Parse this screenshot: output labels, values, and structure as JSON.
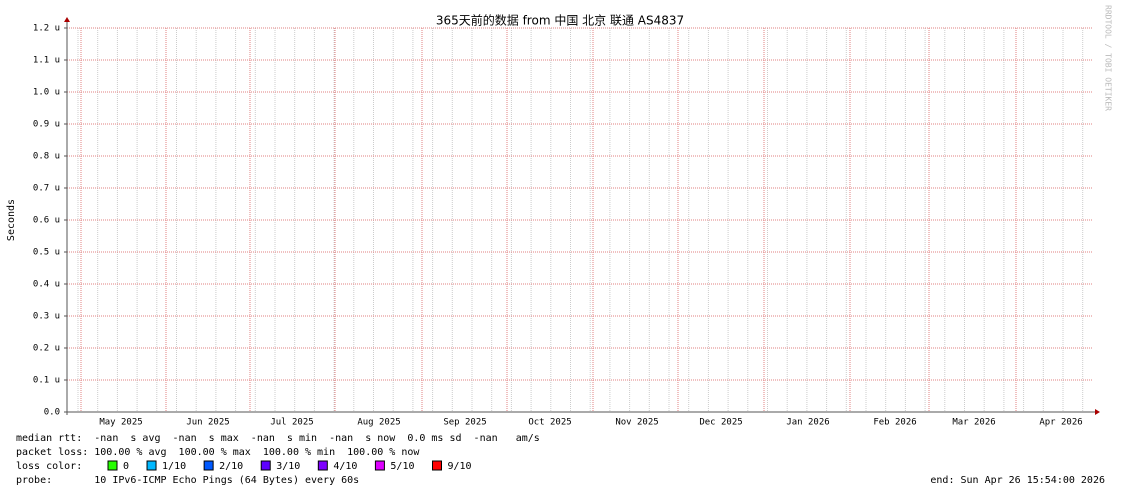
{
  "chart_data": {
    "type": "line",
    "title": "365天前的数据 from 中国 北京 联通 AS4837",
    "y_label": "Seconds",
    "watermark": "RRDTOOL / TOBI OETIKER",
    "categories": [
      "May 2025",
      "Jun 2025",
      "Jul 2025",
      "Aug 2025",
      "Sep 2025",
      "Oct 2025",
      "Nov 2025",
      "Dec 2025",
      "Jan 2026",
      "Feb 2026",
      "Mar 2026",
      "Apr 2026"
    ],
    "ylim": [
      0,
      1.2e-06
    ],
    "yticks": [
      {
        "value": 0,
        "label": "0.0"
      },
      {
        "value": 1e-07,
        "label": "0.1 u"
      },
      {
        "value": 2e-07,
        "label": "0.2 u"
      },
      {
        "value": 3e-07,
        "label": "0.3 u"
      },
      {
        "value": 4e-07,
        "label": "0.4 u"
      },
      {
        "value": 5e-07,
        "label": "0.5 u"
      },
      {
        "value": 6e-07,
        "label": "0.6 u"
      },
      {
        "value": 7e-07,
        "label": "0.7 u"
      },
      {
        "value": 8e-07,
        "label": "0.8 u"
      },
      {
        "value": 9e-07,
        "label": "0.9 u"
      },
      {
        "value": 1e-06,
        "label": "1.0 u"
      },
      {
        "value": 1.1e-06,
        "label": "1.1 u"
      },
      {
        "value": 1.2e-06,
        "label": "1.2 u"
      }
    ],
    "grid": true,
    "grid_color": "#e08080",
    "stats_lines": [
      "median rtt:  -nan  s avg  -nan  s max  -nan  s min  -nan  s now  0.0 ms sd  -nan   am/s",
      "packet loss: 100.00 % avg  100.00 % max  100.00 % min  100.00 % now"
    ],
    "loss_label": "loss color:",
    "loss_colors": [
      {
        "label": "0",
        "color": "#26ff00"
      },
      {
        "label": "1/10",
        "color": "#00b8ff"
      },
      {
        "label": "2/10",
        "color": "#0059ff"
      },
      {
        "label": "3/10",
        "color": "#5e00ff"
      },
      {
        "label": "4/10",
        "color": "#7e00ff"
      },
      {
        "label": "5/10",
        "color": "#dd00ff"
      },
      {
        "label": "9/10",
        "color": "#ff0000"
      }
    ],
    "probe": "probe:       10 IPv6-ICMP Echo Pings (64 Bytes) every 60s",
    "end": "end: Sun Apr 26 15:54:00 2026"
  }
}
